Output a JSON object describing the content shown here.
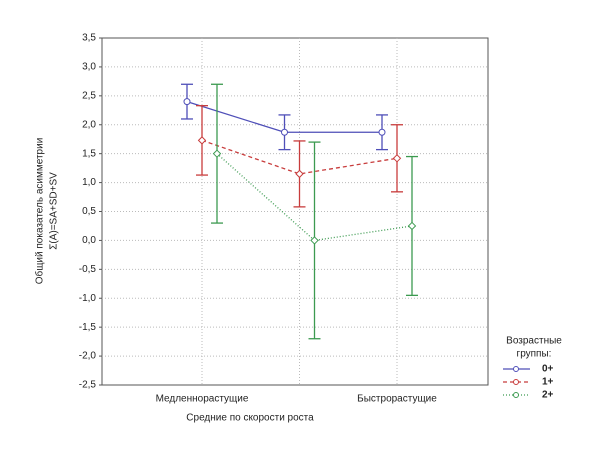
{
  "chart_data": {
    "type": "line",
    "ylabel": [
      "Общий показатель асимметрии",
      "Σ(A)=SA+SD+SV"
    ],
    "xlabel": "Средние по скорости роста",
    "categories": [
      "Медленнорастущие",
      null,
      "Быстрорастущие"
    ],
    "ylim": [
      -2.5,
      3.5
    ],
    "yticks": [
      {
        "value": -2.5,
        "label": "-2,5"
      },
      {
        "value": -2,
        "label": "-2,0"
      },
      {
        "value": -1.5,
        "label": "-1,5"
      },
      {
        "value": -1,
        "label": "-1,0"
      },
      {
        "value": -0.5,
        "label": "-0,5"
      },
      {
        "value": 0,
        "label": "0,0"
      },
      {
        "value": 0.5,
        "label": "0,5"
      },
      {
        "value": 1,
        "label": "1,0"
      },
      {
        "value": 1.5,
        "label": "1,5"
      },
      {
        "value": 2,
        "label": "2,0"
      },
      {
        "value": 2.5,
        "label": "2,5"
      },
      {
        "value": 3,
        "label": "3,0"
      },
      {
        "value": 3.5,
        "label": "3,5"
      }
    ],
    "grid": true,
    "legend_title": [
      "Возрастные",
      "группы:"
    ],
    "legend_position": "right",
    "series": [
      {
        "name": "0+",
        "color": "#4f4fb8",
        "linestyle": "solid",
        "values": [
          2.4,
          1.87,
          1.87
        ],
        "errors": [
          0.3,
          0.3,
          0.3
        ]
      },
      {
        "name": "1+",
        "color": "#c83c3c",
        "linestyle": "dashed",
        "values": [
          1.73,
          1.15,
          1.42
        ],
        "errors": [
          0.6,
          0.57,
          0.58
        ]
      },
      {
        "name": "2+",
        "color": "#3c9a50",
        "linestyle": "dotted",
        "values": [
          1.5,
          0.0,
          0.25
        ],
        "errors": [
          1.2,
          1.7,
          1.2
        ]
      }
    ]
  }
}
